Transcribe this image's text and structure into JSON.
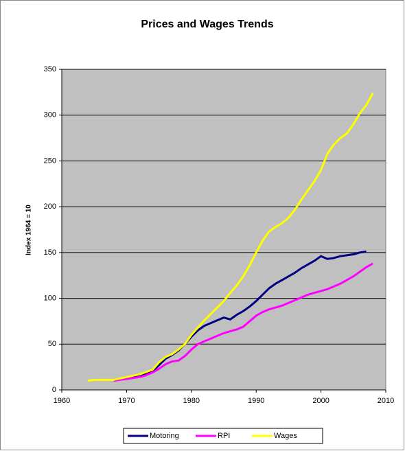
{
  "chart_data": {
    "type": "line",
    "title": "Prices and Wages Trends",
    "y_label": "Index 1964 = 10",
    "xlim": [
      1960,
      2010
    ],
    "xticks": [
      1960,
      1970,
      1980,
      1990,
      2000,
      2010
    ],
    "ylim": [
      0,
      350
    ],
    "yticks": [
      0,
      50,
      100,
      150,
      200,
      250,
      300,
      350
    ],
    "grid": true,
    "legend": "bottom",
    "series": [
      {
        "name": "Motoring",
        "color": "#000080",
        "x": [
          1968,
          1970,
          1972,
          1974,
          1975,
          1976,
          1977,
          1978,
          1979,
          1980,
          1981,
          1982,
          1983,
          1984,
          1985,
          1986,
          1987,
          1988,
          1989,
          1990,
          1991,
          1992,
          1993,
          1994,
          1995,
          1996,
          1997,
          1998,
          1999,
          2000,
          2001,
          2002,
          2003,
          2004,
          2005,
          2006,
          2007
        ],
        "values": [
          11,
          13,
          15,
          20,
          27,
          34,
          38,
          43,
          50,
          58,
          65,
          70,
          73,
          76,
          79,
          77,
          82,
          86,
          91,
          97,
          104,
          111,
          116,
          120,
          124,
          128,
          133,
          137,
          141,
          146,
          143,
          144,
          146,
          147,
          148,
          150,
          151
        ]
      },
      {
        "name": "RPI",
        "color": "#ff00ff",
        "x": [
          1968,
          1970,
          1972,
          1973,
          1974,
          1975,
          1976,
          1977,
          1978,
          1979,
          1980,
          1981,
          1982,
          1983,
          1984,
          1985,
          1986,
          1987,
          1988,
          1989,
          1990,
          1991,
          1992,
          1993,
          1994,
          1995,
          1996,
          1997,
          1998,
          1999,
          2000,
          2001,
          2002,
          2003,
          2004,
          2005,
          2006,
          2007,
          2008
        ],
        "values": [
          10,
          12,
          14,
          16,
          19,
          23,
          28,
          31,
          32,
          37,
          44,
          50,
          53,
          56,
          59,
          62,
          64,
          66,
          69,
          75,
          81,
          85,
          88,
          90,
          92,
          95,
          98,
          101,
          104,
          106,
          108,
          110,
          113,
          116,
          120,
          124,
          129,
          134,
          138
        ]
      },
      {
        "name": "Wages",
        "color": "#ffff00",
        "x": [
          1964,
          1965,
          1968,
          1970,
          1972,
          1974,
          1975,
          1976,
          1977,
          1978,
          1979,
          1980,
          1981,
          1982,
          1983,
          1984,
          1985,
          1986,
          1987,
          1988,
          1989,
          1990,
          1991,
          1992,
          1993,
          1994,
          1995,
          1996,
          1997,
          1998,
          1999,
          2000,
          2001,
          2002,
          2003,
          2004,
          2005,
          2006,
          2007,
          2008
        ],
        "values": [
          10,
          11,
          11,
          14,
          17,
          22,
          30,
          36,
          39,
          44,
          50,
          60,
          68,
          76,
          83,
          90,
          97,
          106,
          114,
          124,
          136,
          150,
          163,
          173,
          178,
          182,
          188,
          197,
          208,
          218,
          228,
          240,
          258,
          268,
          275,
          280,
          290,
          302,
          311,
          324
        ]
      }
    ]
  }
}
